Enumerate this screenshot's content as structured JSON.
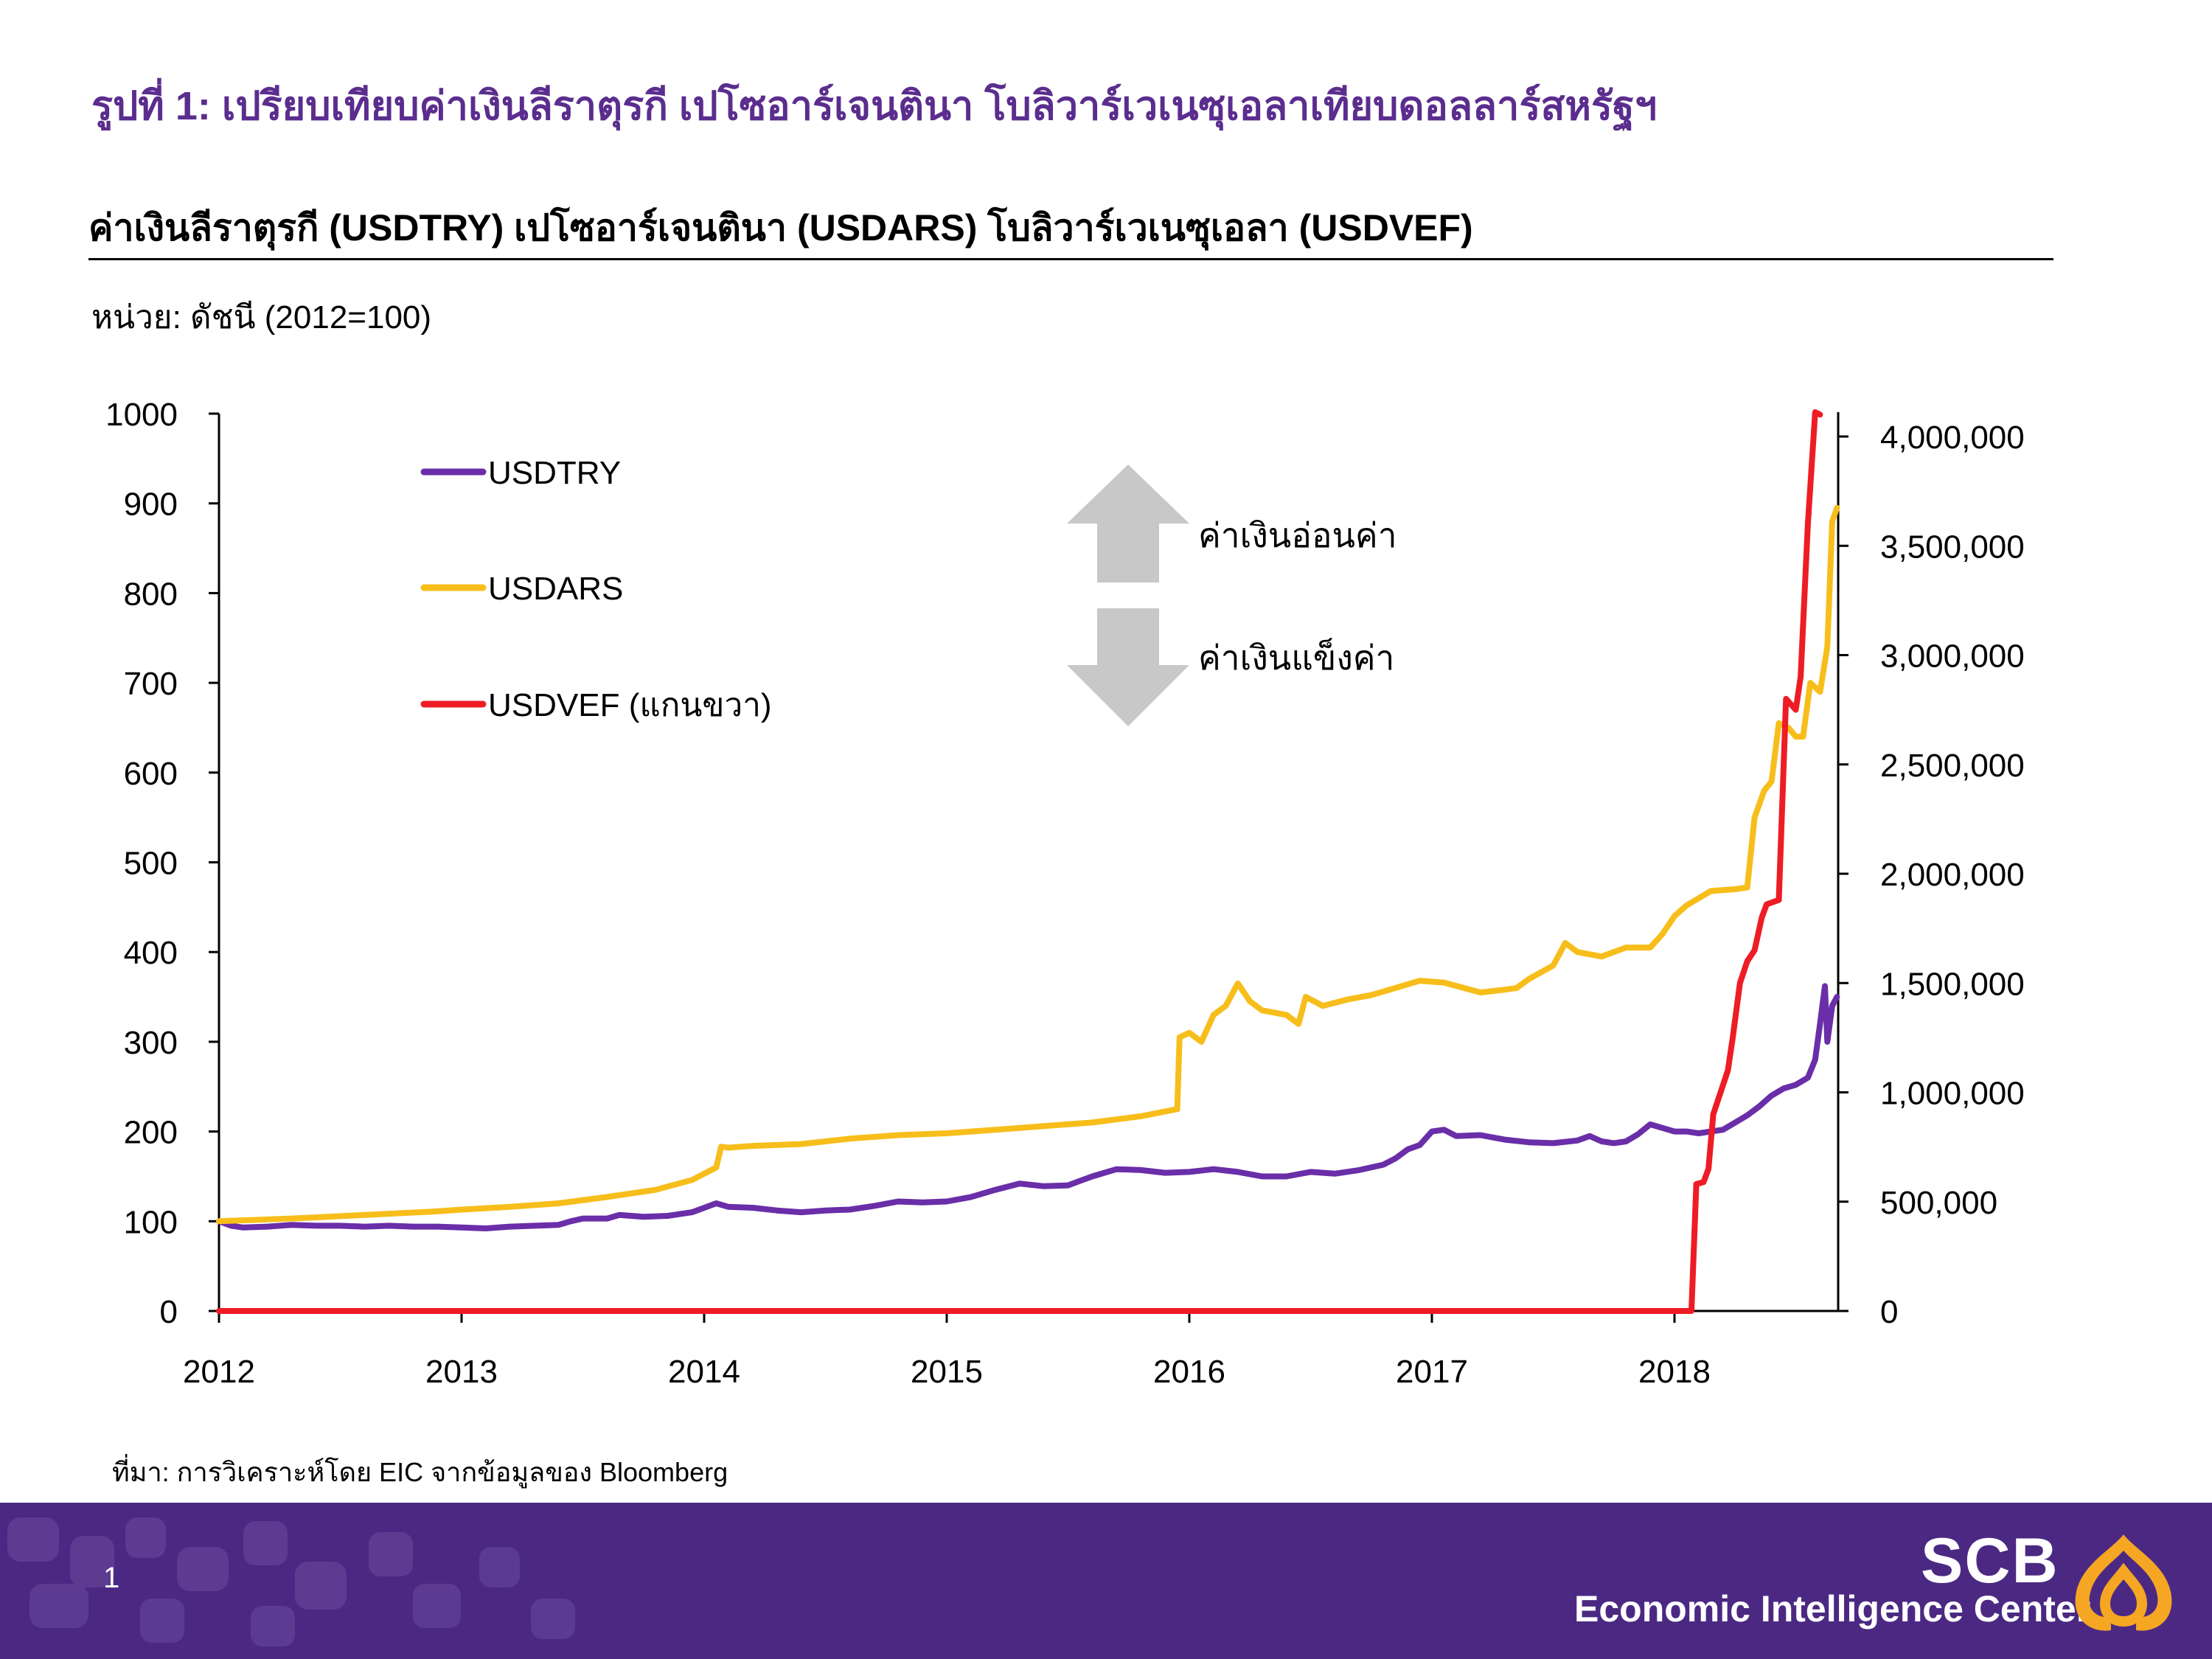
{
  "header": {
    "figure_title": "รูปที่ 1: เปรียบเทียบค่าเงินลีราตุรกี เปโซอาร์เจนตินา โบลิวาร์เวเนซุเอลาเทียบดอลลาร์สหรัฐฯ",
    "chart_title": "ค่าเงินลีราตุรกี (USDTRY) เปโซอาร์เจนตินา (USDARS) โบลิวาร์เวเนซุเอลา (USDVEF)",
    "unit_label": "หน่วย: ดัชนี (2012=100)"
  },
  "annotations": {
    "up_label": "ค่าเงินอ่อนค่า",
    "down_label": "ค่าเงินแข็งค่า"
  },
  "footer": {
    "source": "ที่มา: การวิเคราะห์โดย EIC จากข้อมูลของ Bloomberg",
    "page_number": "1",
    "brand_name": "SCB",
    "brand_subtitle": "Economic Intelligence Center"
  },
  "colors": {
    "usdtry": "#6a2ea8",
    "usdars": "#f7be1b",
    "usdvef": "#ee1c25",
    "title_purple": "#5b2d8e",
    "footer_bg": "#4b2983",
    "arrow_gray": "#c8c8c8",
    "logo_orange": "#f5a623"
  },
  "icons": {
    "up_arrow": "up-arrow-icon",
    "down_arrow": "down-arrow-icon",
    "logo": "scb-lotus-logo-icon"
  },
  "chart_data": {
    "type": "line",
    "x_range": [
      2012,
      2018.67
    ],
    "x_ticks": [
      2012,
      2013,
      2014,
      2015,
      2016,
      2017,
      2018
    ],
    "y_left": {
      "range": [
        0,
        1000
      ],
      "ticks": [
        0,
        100,
        200,
        300,
        400,
        500,
        600,
        700,
        800,
        900,
        1000
      ],
      "tick_labels": [
        "0",
        "100",
        "200",
        "300",
        "400",
        "500",
        "600",
        "700",
        "800",
        "900",
        "1000"
      ]
    },
    "y_right": {
      "range": [
        0,
        4100000
      ],
      "ticks": [
        0,
        500000,
        1000000,
        1500000,
        2000000,
        2500000,
        3000000,
        3500000,
        4000000
      ],
      "tick_labels": [
        "0",
        "500,000",
        "1,000,000",
        "1,500,000",
        "2,000,000",
        "2,500,000",
        "3,000,000",
        "3,500,000",
        "4,000,000"
      ]
    },
    "legend_position": "top-left",
    "grid": false,
    "series": [
      {
        "name": "USDTRY",
        "axis": "left",
        "color": "#6a2ea8",
        "points": [
          [
            2012.0,
            100
          ],
          [
            2012.05,
            95
          ],
          [
            2012.1,
            93
          ],
          [
            2012.2,
            94
          ],
          [
            2012.3,
            96
          ],
          [
            2012.4,
            95
          ],
          [
            2012.5,
            95
          ],
          [
            2012.6,
            94
          ],
          [
            2012.7,
            95
          ],
          [
            2012.8,
            94
          ],
          [
            2012.9,
            94
          ],
          [
            2013.0,
            93
          ],
          [
            2013.1,
            92
          ],
          [
            2013.2,
            94
          ],
          [
            2013.3,
            95
          ],
          [
            2013.4,
            96
          ],
          [
            2013.45,
            100
          ],
          [
            2013.5,
            103
          ],
          [
            2013.6,
            103
          ],
          [
            2013.65,
            107
          ],
          [
            2013.75,
            105
          ],
          [
            2013.85,
            106
          ],
          [
            2013.95,
            110
          ],
          [
            2014.05,
            120
          ],
          [
            2014.1,
            116
          ],
          [
            2014.2,
            115
          ],
          [
            2014.3,
            112
          ],
          [
            2014.4,
            110
          ],
          [
            2014.5,
            112
          ],
          [
            2014.6,
            113
          ],
          [
            2014.7,
            117
          ],
          [
            2014.8,
            122
          ],
          [
            2014.9,
            121
          ],
          [
            2015.0,
            122
          ],
          [
            2015.1,
            127
          ],
          [
            2015.2,
            135
          ],
          [
            2015.3,
            142
          ],
          [
            2015.4,
            139
          ],
          [
            2015.5,
            140
          ],
          [
            2015.55,
            145
          ],
          [
            2015.6,
            150
          ],
          [
            2015.7,
            158
          ],
          [
            2015.8,
            157
          ],
          [
            2015.9,
            154
          ],
          [
            2016.0,
            155
          ],
          [
            2016.1,
            158
          ],
          [
            2016.2,
            155
          ],
          [
            2016.3,
            150
          ],
          [
            2016.4,
            150
          ],
          [
            2016.5,
            155
          ],
          [
            2016.6,
            153
          ],
          [
            2016.7,
            157
          ],
          [
            2016.8,
            163
          ],
          [
            2016.85,
            170
          ],
          [
            2016.9,
            180
          ],
          [
            2016.95,
            185
          ],
          [
            2017.0,
            200
          ],
          [
            2017.05,
            202
          ],
          [
            2017.1,
            195
          ],
          [
            2017.2,
            196
          ],
          [
            2017.3,
            191
          ],
          [
            2017.4,
            188
          ],
          [
            2017.5,
            187
          ],
          [
            2017.6,
            190
          ],
          [
            2017.65,
            195
          ],
          [
            2017.7,
            189
          ],
          [
            2017.75,
            187
          ],
          [
            2017.8,
            189
          ],
          [
            2017.85,
            197
          ],
          [
            2017.9,
            208
          ],
          [
            2018.0,
            200
          ],
          [
            2018.05,
            200
          ],
          [
            2018.1,
            198
          ],
          [
            2018.2,
            202
          ],
          [
            2018.25,
            210
          ],
          [
            2018.3,
            218
          ],
          [
            2018.35,
            228
          ],
          [
            2018.4,
            240
          ],
          [
            2018.45,
            248
          ],
          [
            2018.5,
            252
          ],
          [
            2018.55,
            260
          ],
          [
            2018.58,
            280
          ],
          [
            2018.6,
            320
          ],
          [
            2018.62,
            362
          ],
          [
            2018.63,
            300
          ],
          [
            2018.65,
            340
          ],
          [
            2018.67,
            350
          ]
        ]
      },
      {
        "name": "USDARS",
        "axis": "left",
        "color": "#f7be1b",
        "points": [
          [
            2012.0,
            100
          ],
          [
            2012.3,
            103
          ],
          [
            2012.6,
            107
          ],
          [
            2012.9,
            111
          ],
          [
            2013.0,
            113
          ],
          [
            2013.2,
            116
          ],
          [
            2013.4,
            120
          ],
          [
            2013.6,
            127
          ],
          [
            2013.8,
            135
          ],
          [
            2013.95,
            146
          ],
          [
            2014.05,
            160
          ],
          [
            2014.07,
            183
          ],
          [
            2014.1,
            182
          ],
          [
            2014.2,
            184
          ],
          [
            2014.4,
            186
          ],
          [
            2014.6,
            192
          ],
          [
            2014.8,
            196
          ],
          [
            2015.0,
            198
          ],
          [
            2015.2,
            202
          ],
          [
            2015.4,
            206
          ],
          [
            2015.6,
            210
          ],
          [
            2015.8,
            217
          ],
          [
            2015.95,
            225
          ],
          [
            2015.96,
            305
          ],
          [
            2016.0,
            310
          ],
          [
            2016.05,
            300
          ],
          [
            2016.1,
            330
          ],
          [
            2016.15,
            340
          ],
          [
            2016.2,
            365
          ],
          [
            2016.25,
            345
          ],
          [
            2016.3,
            335
          ],
          [
            2016.4,
            330
          ],
          [
            2016.45,
            320
          ],
          [
            2016.48,
            350
          ],
          [
            2016.55,
            340
          ],
          [
            2016.65,
            347
          ],
          [
            2016.75,
            352
          ],
          [
            2016.85,
            360
          ],
          [
            2016.95,
            368
          ],
          [
            2017.05,
            366
          ],
          [
            2017.2,
            355
          ],
          [
            2017.3,
            358
          ],
          [
            2017.35,
            360
          ],
          [
            2017.4,
            370
          ],
          [
            2017.5,
            385
          ],
          [
            2017.55,
            410
          ],
          [
            2017.6,
            400
          ],
          [
            2017.7,
            395
          ],
          [
            2017.8,
            405
          ],
          [
            2017.9,
            405
          ],
          [
            2017.95,
            420
          ],
          [
            2018.0,
            440
          ],
          [
            2018.05,
            452
          ],
          [
            2018.1,
            460
          ],
          [
            2018.15,
            468
          ],
          [
            2018.25,
            470
          ],
          [
            2018.3,
            472
          ],
          [
            2018.33,
            550
          ],
          [
            2018.37,
            580
          ],
          [
            2018.4,
            590
          ],
          [
            2018.43,
            655
          ],
          [
            2018.47,
            650
          ],
          [
            2018.5,
            640
          ],
          [
            2018.53,
            640
          ],
          [
            2018.56,
            700
          ],
          [
            2018.6,
            690
          ],
          [
            2018.63,
            740
          ],
          [
            2018.65,
            880
          ],
          [
            2018.67,
            895
          ]
        ]
      },
      {
        "name": "USDVEF (แกนขวา)",
        "axis": "right",
        "color": "#ee1c25",
        "points": [
          [
            2012.0,
            0
          ],
          [
            2018.07,
            0
          ],
          [
            2018.09,
            580000
          ],
          [
            2018.12,
            590000
          ],
          [
            2018.14,
            650000
          ],
          [
            2018.16,
            900000
          ],
          [
            2018.19,
            1000000
          ],
          [
            2018.22,
            1100000
          ],
          [
            2018.24,
            1250000
          ],
          [
            2018.27,
            1500000
          ],
          [
            2018.3,
            1600000
          ],
          [
            2018.33,
            1650000
          ],
          [
            2018.36,
            1800000
          ],
          [
            2018.38,
            1860000
          ],
          [
            2018.43,
            1880000
          ],
          [
            2018.46,
            2800000
          ],
          [
            2018.5,
            2750000
          ],
          [
            2018.52,
            2900000
          ],
          [
            2018.55,
            3600000
          ],
          [
            2018.58,
            4150000
          ],
          [
            2018.6,
            4100000
          ]
        ]
      }
    ]
  }
}
